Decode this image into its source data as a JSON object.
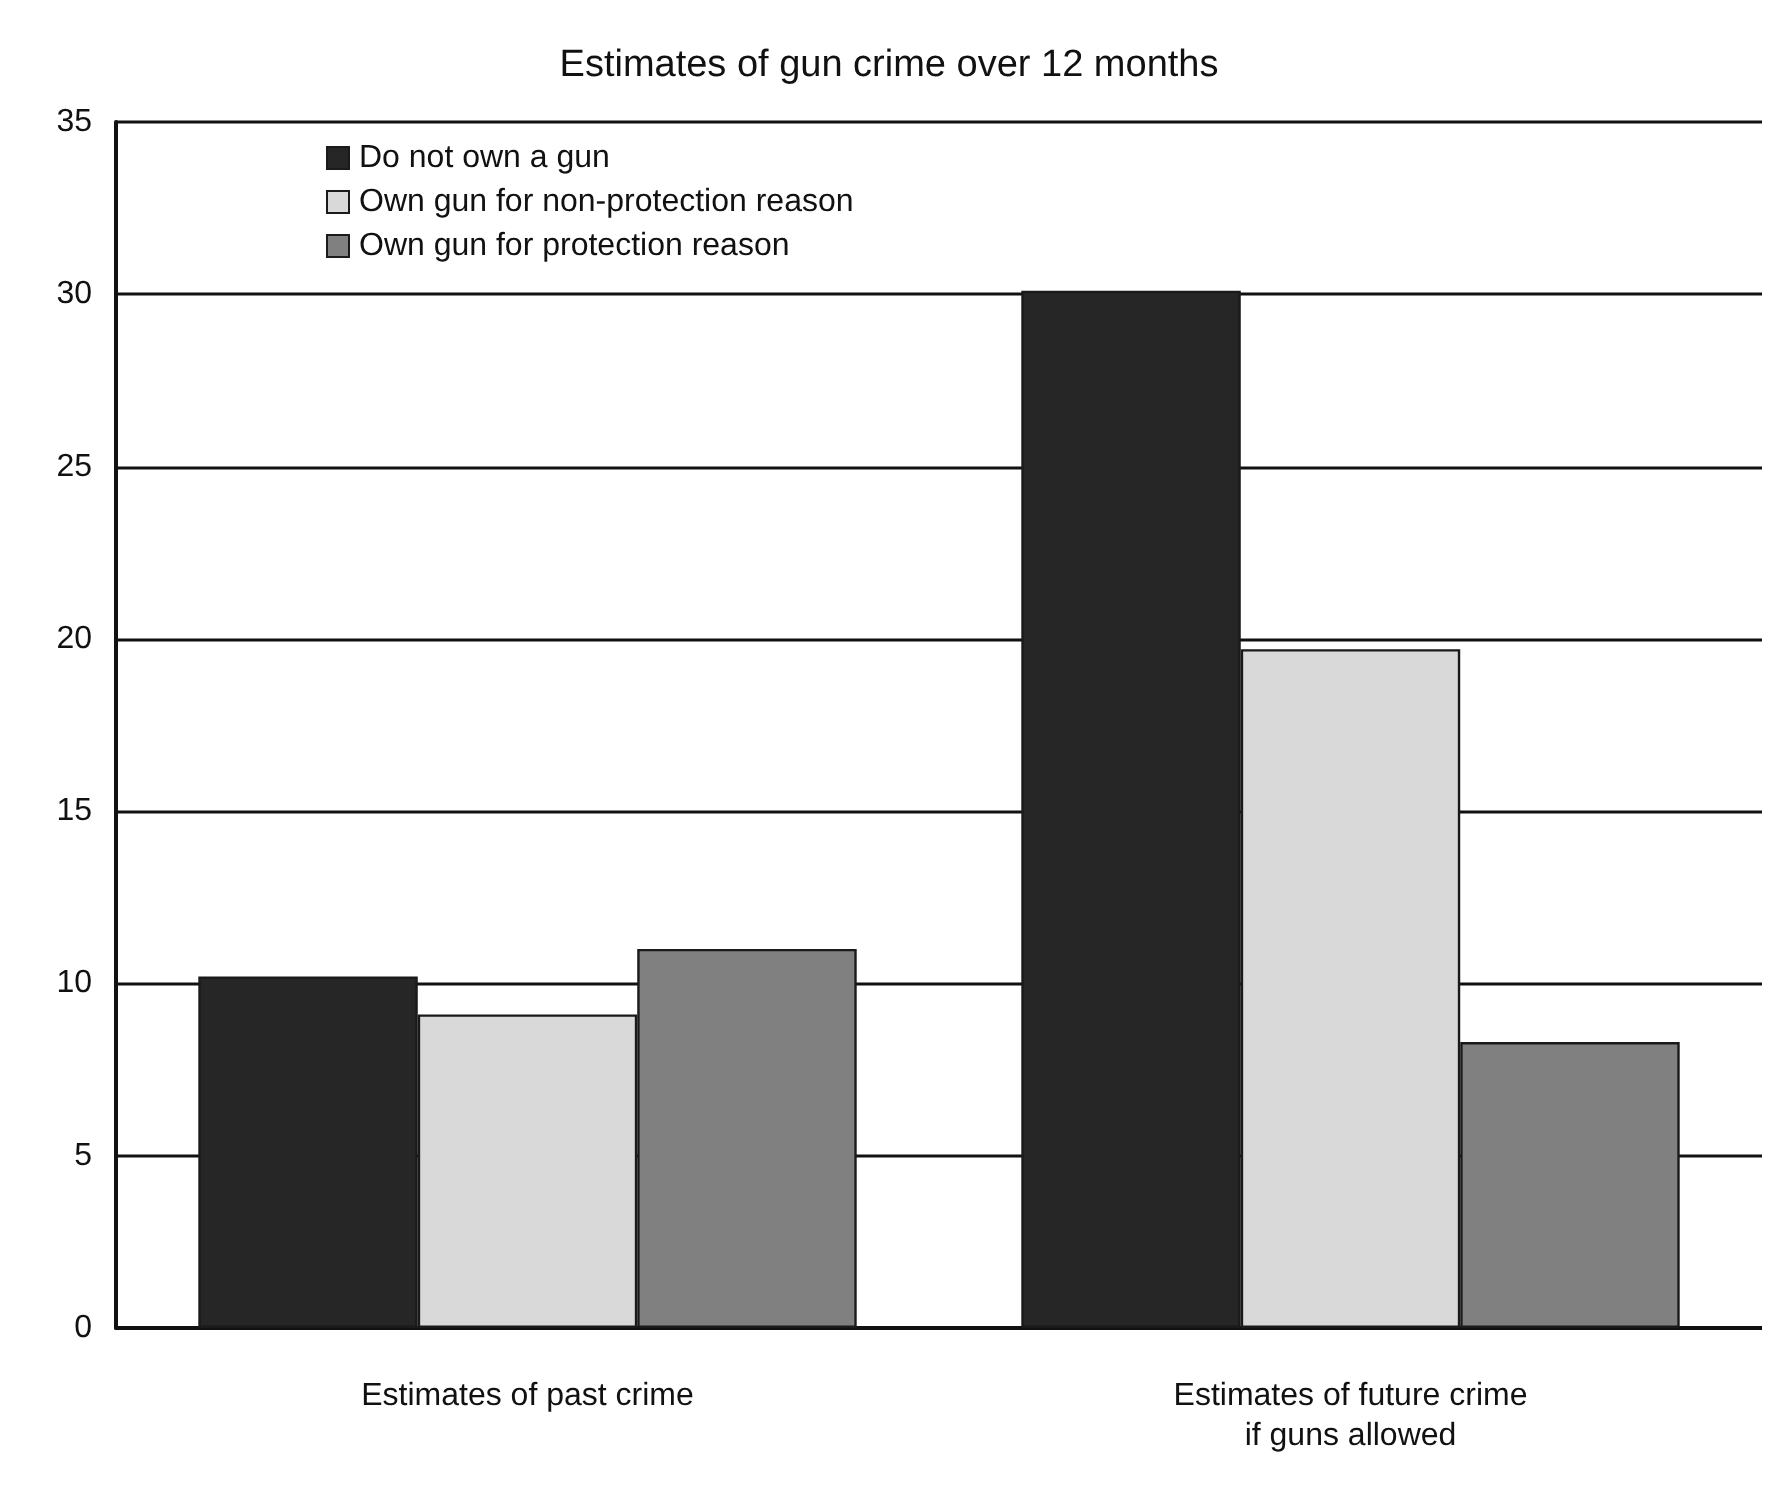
{
  "chart_data": {
    "type": "bar",
    "title": "Estimates of gun crime over 12 months",
    "categories": [
      "Estimates of past crime",
      "Estimates of future crime\nif guns allowed"
    ],
    "series": [
      {
        "name": "Do not own a gun",
        "color": "#262626",
        "values": [
          10.2,
          30.1
        ]
      },
      {
        "name": "Own gun for non-protection reason",
        "color": "#d9d9d9",
        "values": [
          9.1,
          19.7
        ]
      },
      {
        "name": "Own gun for protection reason",
        "color": "#808080",
        "values": [
          11.0,
          8.3
        ]
      }
    ],
    "ylim": [
      0,
      35
    ],
    "yticks": [
      0,
      5,
      10,
      15,
      20,
      25,
      30,
      35
    ],
    "grid": "y",
    "legend": "top left"
  }
}
